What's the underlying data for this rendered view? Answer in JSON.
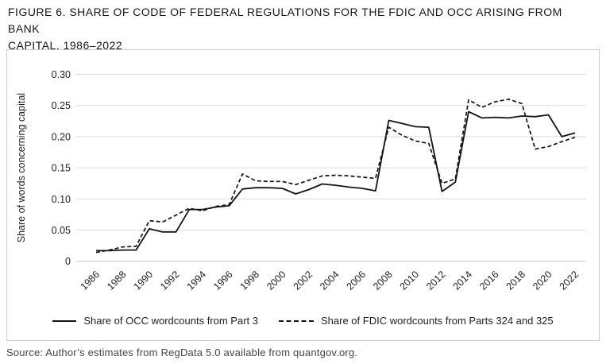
{
  "figure": {
    "title_lines": [
      "FIGURE 6. SHARE OF CODE OF FEDERAL REGULATIONS FOR THE FDIC AND OCC ARISING FROM BANK",
      "CAPITAL, 1986–2022"
    ],
    "source": "Source: Author’s estimates from RegData 5.0 available from quantgov.org."
  },
  "colors": {
    "line": "#141414",
    "gridline": "#dcdcdc",
    "baseline": "#c4c4c4",
    "box_border": "#cbcbcb",
    "text": "#1f1f1f"
  },
  "chart_data": {
    "type": "line",
    "title": "FIGURE 6. SHARE OF CODE OF FEDERAL REGULATIONS FOR THE FDIC AND OCC ARISING FROM BANK CAPITAL, 1986–2022",
    "xlabel": "",
    "ylabel": "Share of words concerning capital",
    "ylim": [
      0,
      0.3
    ],
    "grid": "horizontal",
    "legend_position": "bottom",
    "y_tick_labels": [
      "0",
      "0.05",
      "0.10",
      "0.15",
      "0.20",
      "0.25",
      "0.30"
    ],
    "x_tick_labels": [
      "1986",
      "1988",
      "1990",
      "1992",
      "1994",
      "1996",
      "1998",
      "2000",
      "2002",
      "2004",
      "2006",
      "2008",
      "2010",
      "2012",
      "2016",
      "2014",
      "2018",
      "2020",
      "2022"
    ],
    "x": [
      1986,
      1987,
      1988,
      1989,
      1990,
      1991,
      1992,
      1993,
      1994,
      1995,
      1996,
      1997,
      1998,
      1999,
      2000,
      2001,
      2002,
      2003,
      2004,
      2005,
      2006,
      2007,
      2008,
      2009,
      2010,
      2011,
      2012,
      2013,
      2014,
      2015,
      2016,
      2017,
      2018,
      2019,
      2020,
      2021,
      2022
    ],
    "series": [
      {
        "name": "Share of OCC wordcounts from Part 3",
        "line_style": "solid",
        "values": [
          0.017,
          0.017,
          0.018,
          0.018,
          0.052,
          0.047,
          0.047,
          0.083,
          0.083,
          0.087,
          0.089,
          0.116,
          0.118,
          0.118,
          0.117,
          0.108,
          0.115,
          0.124,
          0.122,
          0.119,
          0.117,
          0.113,
          0.226,
          0.221,
          0.216,
          0.215,
          0.112,
          0.127,
          0.24,
          0.23,
          0.231,
          0.23,
          0.233,
          0.232,
          0.235,
          0.2,
          0.206
        ]
      },
      {
        "name": "Share of FDIC wordcounts from Parts 324 and 325",
        "line_style": "dashed",
        "values": [
          0.014,
          0.018,
          0.023,
          0.024,
          0.065,
          0.063,
          0.074,
          0.085,
          0.081,
          0.088,
          0.091,
          0.14,
          0.129,
          0.128,
          0.128,
          0.123,
          0.13,
          0.137,
          0.138,
          0.137,
          0.135,
          0.133,
          0.215,
          0.202,
          0.193,
          0.189,
          0.125,
          0.132,
          0.259,
          0.247,
          0.256,
          0.26,
          0.253,
          0.18,
          0.184,
          0.192,
          0.199
        ]
      }
    ]
  }
}
